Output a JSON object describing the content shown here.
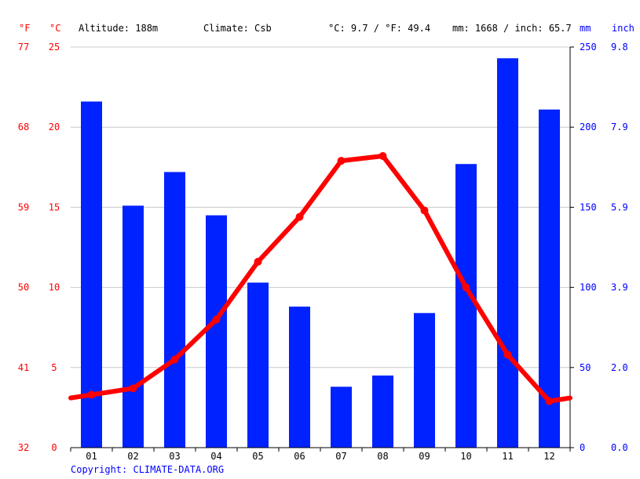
{
  "header": {
    "unit_f": "°F",
    "unit_c": "°C",
    "altitude": "Altitude: 188m",
    "climate": "Climate: Csb",
    "avg_temp": "°C: 9.7 / °F: 49.4",
    "precip_total": "mm: 1668 / inch: 65.7",
    "unit_mm": "mm",
    "unit_inch": "inch"
  },
  "axes": {
    "fahrenheit_ticks": [
      "32",
      "41",
      "50",
      "59",
      "68",
      "77"
    ],
    "celsius_ticks": [
      "0",
      "5",
      "10",
      "15",
      "20",
      "25"
    ],
    "mm_ticks": [
      "0",
      "50",
      "100",
      "150",
      "200",
      "250"
    ],
    "inch_ticks": [
      "0.0",
      "2.0",
      "3.9",
      "5.9",
      "7.9",
      "9.8"
    ]
  },
  "footer": {
    "copyright": "Copyright: CLIMATE-DATA.ORG"
  },
  "colors": {
    "temperature": "#ff0000",
    "precipitation": "#0022ff",
    "grid": "#c8c8c8",
    "axis": "#000000"
  },
  "chart_data": {
    "type": "bar",
    "categories": [
      "01",
      "02",
      "03",
      "04",
      "05",
      "06",
      "07",
      "08",
      "09",
      "10",
      "11",
      "12"
    ],
    "series": [
      {
        "type": "bar",
        "values": [
          216,
          151,
          172,
          145,
          103,
          88,
          38,
          45,
          84,
          177,
          243,
          211
        ],
        "axis": "right",
        "color": "#0022ff"
      },
      {
        "type": "line",
        "values": [
          3.3,
          3.7,
          5.5,
          8.0,
          11.6,
          14.4,
          17.9,
          18.2,
          14.8,
          10.0,
          5.8,
          2.9
        ],
        "axis": "left",
        "color": "#ff0000"
      }
    ],
    "ylim_left": [
      0,
      25
    ],
    "ylim_right": [
      0,
      250
    ],
    "grid": true
  }
}
